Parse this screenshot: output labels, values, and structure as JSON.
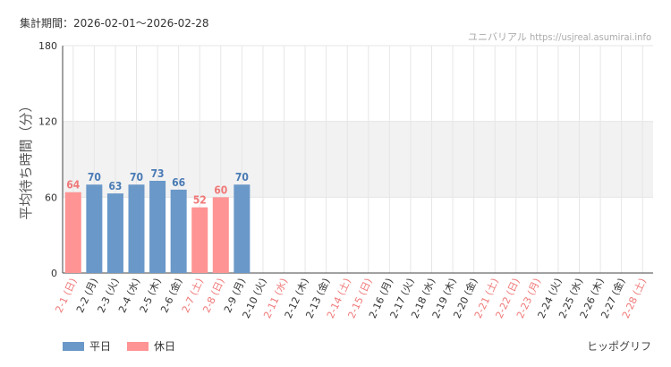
{
  "header": {
    "period": "集計期間：2026-02-01～2026-02-28",
    "site": "ユニバリアル  https://usjreal.asumirai.info"
  },
  "legend": {
    "weekday_label": "平日",
    "holiday_label": "休日"
  },
  "brand": "ヒッポグリフ",
  "colors": {
    "weekday": "#6a98c9",
    "holiday": "#ff9494",
    "weekday_text": "#4a7bb5",
    "holiday_text": "#f07878",
    "band": "#f2f2f2"
  },
  "chart_data": {
    "type": "bar",
    "ylabel": "平均待ち時間（分）",
    "ylim": [
      0,
      180
    ],
    "yticks": [
      0,
      60,
      120,
      180
    ],
    "highlight_band": [
      60,
      120
    ],
    "categories": [
      "2-1 (日)",
      "2-2 (月)",
      "2-3 (火)",
      "2-4 (水)",
      "2-5 (木)",
      "2-6 (金)",
      "2-7 (土)",
      "2-8 (日)",
      "2-9 (月)",
      "2-10 (火)",
      "2-11 (水)",
      "2-12 (木)",
      "2-13 (金)",
      "2-14 (土)",
      "2-15 (日)",
      "2-16 (月)",
      "2-17 (火)",
      "2-18 (水)",
      "2-19 (木)",
      "2-20 (金)",
      "2-21 (土)",
      "2-22 (日)",
      "2-23 (月)",
      "2-24 (火)",
      "2-25 (水)",
      "2-26 (木)",
      "2-27 (金)",
      "2-28 (土)"
    ],
    "holiday": [
      true,
      false,
      false,
      false,
      false,
      false,
      true,
      true,
      false,
      false,
      true,
      false,
      false,
      true,
      true,
      false,
      false,
      false,
      false,
      false,
      true,
      true,
      true,
      false,
      false,
      false,
      false,
      true
    ],
    "values": [
      64,
      70,
      63,
      70,
      73,
      66,
      52,
      60,
      70,
      null,
      null,
      null,
      null,
      null,
      null,
      null,
      null,
      null,
      null,
      null,
      null,
      null,
      null,
      null,
      null,
      null,
      null,
      null
    ]
  }
}
